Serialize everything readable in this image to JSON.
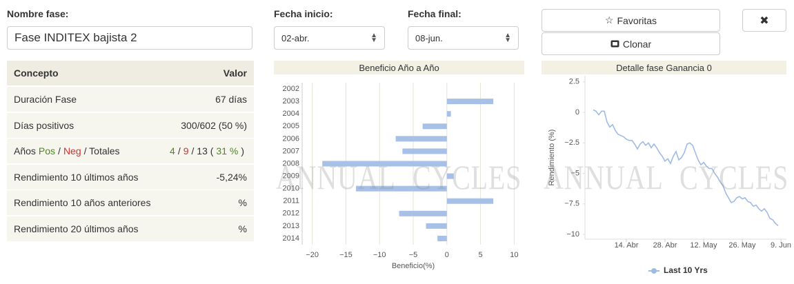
{
  "form": {
    "name_label": "Nombre fase:",
    "name_value": "Fase INDITEX bajista 2",
    "start_label": "Fecha inicio:",
    "start_value": "02-abr.",
    "end_label": "Fecha final:",
    "end_value": "08-jun.",
    "favorites": {
      "icon": "☆",
      "label": "Favoritas"
    },
    "clone": {
      "label": "Clonar"
    },
    "close": {
      "icon": "✖"
    }
  },
  "table": {
    "header": [
      "Concepto",
      "Valor"
    ],
    "rows": [
      [
        "Duración Fase",
        "67 días"
      ],
      [
        "Días positivos",
        "300/602 (50 %)"
      ],
      [
        [
          "Años",
          "Pos",
          "/",
          "Neg",
          "/ Totales"
        ],
        [
          "4",
          "/",
          "9",
          "/ 13 (",
          "31 %",
          ")"
        ]
      ],
      [
        "Rendimiento 10 últimos años",
        "-5,24%"
      ],
      [
        "Rendimiento 10 años anteriores",
        "%"
      ],
      [
        "Rendimiento 20 últimos años",
        "%"
      ]
    ]
  },
  "watermark": [
    "ANNUAL",
    "CYCLES"
  ],
  "chart_data": [
    {
      "type": "bar",
      "orientation": "horizontal",
      "title": "Beneficio Año a Año",
      "x_label": "Beneficio(%)",
      "categories": [
        "2002",
        "2003",
        "2004",
        "2005",
        "2006",
        "2007",
        "2008",
        "2009",
        "2010",
        "2011",
        "2012",
        "2013",
        "2014"
      ],
      "values": [
        0,
        6.9,
        0.6,
        -3.6,
        -7.6,
        -6.6,
        -18.5,
        1.0,
        -13.5,
        6.9,
        -7.1,
        -3.1,
        -1.4
      ],
      "color": "#a6c0e6",
      "xlim": [
        -21.5,
        11.5
      ],
      "xticks": [
        {
          "value": -20,
          "label": "−20"
        },
        {
          "value": -15,
          "label": "−15"
        },
        {
          "value": -10,
          "label": "−10"
        },
        {
          "value": -5,
          "label": "−5"
        },
        0,
        5,
        10
      ],
      "grid": true
    },
    {
      "type": "line",
      "title": "Detalle fase Ganancia 0",
      "y_label": "Rendimiento (%)",
      "x": [
        92,
        93,
        94,
        95,
        96,
        97,
        98,
        99,
        100,
        101,
        102,
        103,
        104,
        105,
        106,
        107,
        108,
        109,
        110,
        111,
        112,
        113,
        114,
        115,
        116,
        117,
        118,
        119,
        120,
        121,
        122,
        123,
        124,
        125,
        126,
        127,
        128,
        129,
        130,
        131,
        132,
        133,
        134,
        135,
        136,
        137,
        138,
        139,
        140,
        141,
        142,
        143,
        144,
        145,
        146,
        147,
        148,
        149,
        150,
        151,
        152,
        153,
        154,
        155,
        156,
        157,
        158,
        159
      ],
      "series": [
        {
          "name": "Last 10 Yrs",
          "color": "#9ebbe3",
          "values": [
            0.2,
            0.1,
            -0.2,
            0.1,
            0.1,
            -0.8,
            -1.2,
            -1.0,
            -1.5,
            -1.8,
            -1.9,
            -2.0,
            -2.2,
            -2.3,
            -2.3,
            -2.6,
            -3.0,
            -2.6,
            -2.4,
            -2.7,
            -2.5,
            -2.9,
            -2.6,
            -2.9,
            -3.3,
            -3.6,
            -4.0,
            -3.8,
            -4.2,
            -3.6,
            -3.2,
            -3.9,
            -3.7,
            -3.3,
            -2.6,
            -2.5,
            -2.7,
            -3.3,
            -3.9,
            -4.3,
            -4.1,
            -4.4,
            -4.6,
            -4.6,
            -5.0,
            -5.3,
            -5.7,
            -6.0,
            -6.6,
            -7.0,
            -7.4,
            -7.3,
            -7.0,
            -6.9,
            -7.1,
            -7.0,
            -7.3,
            -7.4,
            -7.7,
            -7.6,
            -7.9,
            -8.1,
            -7.9,
            -8.2,
            -8.7,
            -8.8,
            -9.1,
            -9.3
          ]
        }
      ],
      "xlim": [
        89,
        162
      ],
      "xticks": [
        {
          "value": 104,
          "label": "14. Abr"
        },
        {
          "value": 118,
          "label": "28. Abr"
        },
        {
          "value": 132,
          "label": "12. May"
        },
        {
          "value": 146,
          "label": "26. May"
        },
        {
          "value": 160,
          "label": "9. Jun"
        }
      ],
      "ylim": [
        -10.4,
        3.0
      ],
      "yticks": [
        2.5,
        0,
        {
          "value": -2.5,
          "label": "−2.5"
        },
        {
          "value": -5,
          "label": "−5"
        },
        {
          "value": -7.5,
          "label": "−7.5"
        },
        {
          "value": -10,
          "label": "−10"
        }
      ],
      "grid": false,
      "legend": "bottom"
    }
  ]
}
